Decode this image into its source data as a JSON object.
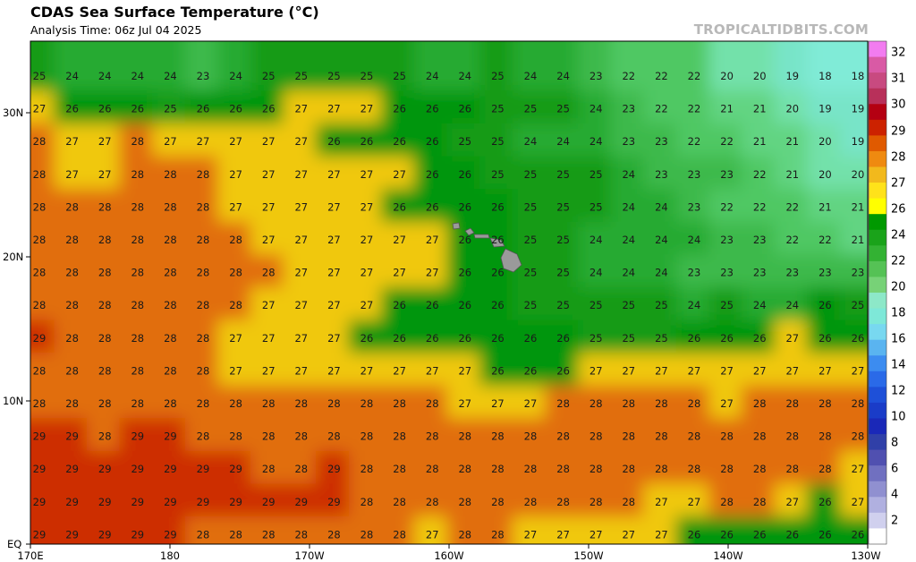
{
  "header": {
    "title": "CDAS Sea Surface Temperature (°C)",
    "subtitle": "Analysis Time: 06z Jul 04 2025",
    "credit": "TROPICALTIDBITS.COM"
  },
  "map": {
    "lat_labels": [
      "30N",
      "20N",
      "10N",
      "EQ"
    ],
    "lon_labels": [
      "170E",
      "180",
      "170W",
      "160W",
      "150W",
      "140W",
      "130W"
    ],
    "lat_range": [
      0,
      35
    ],
    "lon_range": [
      "170E",
      "130W"
    ]
  },
  "colorbar": {
    "labels": [
      "32",
      "31",
      "30",
      "29",
      "28",
      "27",
      "26",
      "24",
      "22",
      "20",
      "18",
      "16",
      "14",
      "12",
      "10",
      "8",
      "6",
      "4",
      "2"
    ],
    "colors": [
      "#f27cf0",
      "#d95aa5",
      "#c84a80",
      "#b8305a",
      "#b40012",
      "#cc2200",
      "#e05a00",
      "#ef8a10",
      "#f2b91c",
      "#ffe21a",
      "#ffff00",
      "#009900",
      "#1aa31a",
      "#33b233",
      "#55c255",
      "#77d277",
      "#8de8c8",
      "#7ee8d8",
      "#78d8f0",
      "#5ab4f0",
      "#3c8cf0",
      "#2a6ae8",
      "#1e50d8",
      "#1a3cc8",
      "#1a28b8",
      "#3040a8",
      "#5050b0",
      "#7070c0",
      "#9090d0",
      "#b0b0e0",
      "#d0d0ee",
      "#ffffff"
    ]
  },
  "sst_grid": [
    [
      "25",
      "24",
      "24",
      "24",
      "24",
      "23",
      "24",
      "25",
      "25",
      "25",
      "25",
      "25",
      "24",
      "24",
      "25",
      "24",
      "24",
      "23",
      "22",
      "22",
      "22",
      "20",
      "20",
      "19",
      "18",
      "18"
    ],
    [
      "27",
      "26",
      "26",
      "26",
      "25",
      "26",
      "26",
      "26",
      "27",
      "27",
      "27",
      "26",
      "26",
      "26",
      "25",
      "25",
      "25",
      "24",
      "23",
      "22",
      "22",
      "21",
      "21",
      "20",
      "19",
      "19"
    ],
    [
      "28",
      "27",
      "27",
      "28",
      "27",
      "27",
      "27",
      "27",
      "27",
      "26",
      "26",
      "26",
      "26",
      "25",
      "25",
      "24",
      "24",
      "24",
      "23",
      "23",
      "22",
      "22",
      "21",
      "21",
      "20",
      "19"
    ],
    [
      "28",
      "27",
      "27",
      "28",
      "28",
      "28",
      "27",
      "27",
      "27",
      "27",
      "27",
      "27",
      "26",
      "26",
      "25",
      "25",
      "25",
      "25",
      "24",
      "23",
      "23",
      "23",
      "22",
      "21",
      "20",
      "20"
    ],
    [
      "28",
      "28",
      "28",
      "28",
      "28",
      "28",
      "27",
      "27",
      "27",
      "27",
      "27",
      "26",
      "26",
      "26",
      "26",
      "25",
      "25",
      "25",
      "24",
      "24",
      "23",
      "22",
      "22",
      "22",
      "21",
      "21"
    ],
    [
      "28",
      "28",
      "28",
      "28",
      "28",
      "28",
      "28",
      "27",
      "27",
      "27",
      "27",
      "27",
      "27",
      "26",
      "26",
      "25",
      "25",
      "24",
      "24",
      "24",
      "24",
      "23",
      "23",
      "22",
      "22",
      "21"
    ],
    [
      "28",
      "28",
      "28",
      "28",
      "28",
      "28",
      "28",
      "28",
      "27",
      "27",
      "27",
      "27",
      "27",
      "26",
      "26",
      "25",
      "25",
      "24",
      "24",
      "24",
      "23",
      "23",
      "23",
      "23",
      "23",
      "23"
    ],
    [
      "28",
      "28",
      "28",
      "28",
      "28",
      "28",
      "28",
      "27",
      "27",
      "27",
      "27",
      "26",
      "26",
      "26",
      "26",
      "25",
      "25",
      "25",
      "25",
      "25",
      "24",
      "25",
      "24",
      "24",
      "26",
      "25"
    ],
    [
      "29",
      "28",
      "28",
      "28",
      "28",
      "28",
      "27",
      "27",
      "27",
      "27",
      "26",
      "26",
      "26",
      "26",
      "26",
      "26",
      "26",
      "25",
      "25",
      "25",
      "26",
      "26",
      "26",
      "27",
      "26",
      "26"
    ],
    [
      "28",
      "28",
      "28",
      "28",
      "28",
      "28",
      "27",
      "27",
      "27",
      "27",
      "27",
      "27",
      "27",
      "27",
      "26",
      "26",
      "26",
      "27",
      "27",
      "27",
      "27",
      "27",
      "27",
      "27",
      "27",
      "27"
    ],
    [
      "28",
      "28",
      "28",
      "28",
      "28",
      "28",
      "28",
      "28",
      "28",
      "28",
      "28",
      "28",
      "28",
      "27",
      "27",
      "27",
      "28",
      "28",
      "28",
      "28",
      "28",
      "27",
      "28",
      "28",
      "28",
      "28"
    ],
    [
      "29",
      "29",
      "28",
      "29",
      "29",
      "28",
      "28",
      "28",
      "28",
      "28",
      "28",
      "28",
      "28",
      "28",
      "28",
      "28",
      "28",
      "28",
      "28",
      "28",
      "28",
      "28",
      "28",
      "28",
      "28",
      "28"
    ],
    [
      "29",
      "29",
      "29",
      "29",
      "29",
      "29",
      "29",
      "28",
      "28",
      "29",
      "28",
      "28",
      "28",
      "28",
      "28",
      "28",
      "28",
      "28",
      "28",
      "28",
      "28",
      "28",
      "28",
      "28",
      "28",
      "27"
    ],
    [
      "29",
      "29",
      "29",
      "29",
      "29",
      "29",
      "29",
      "29",
      "29",
      "29",
      "28",
      "28",
      "28",
      "28",
      "28",
      "28",
      "28",
      "28",
      "28",
      "27",
      "27",
      "28",
      "28",
      "27",
      "26",
      "27"
    ],
    [
      "29",
      "29",
      "29",
      "29",
      "29",
      "28",
      "28",
      "28",
      "28",
      "28",
      "28",
      "28",
      "27",
      "28",
      "28",
      "27",
      "27",
      "27",
      "27",
      "27",
      "26",
      "26",
      "26",
      "26",
      "26",
      "26"
    ]
  ]
}
